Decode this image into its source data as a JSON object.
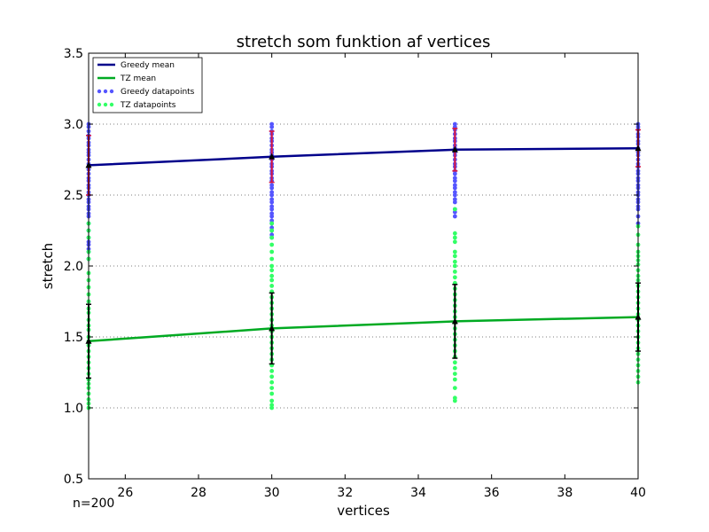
{
  "chart_data": {
    "type": "line",
    "title": "stretch som funktion af vertices",
    "xlabel": "vertices",
    "ylabel": "stretch",
    "annotation": "n=200",
    "xlim": [
      25,
      40
    ],
    "ylim": [
      0.5,
      3.5
    ],
    "xticks": [
      "26",
      "28",
      "30",
      "32",
      "34",
      "36",
      "38",
      "40"
    ],
    "yticks": [
      "0.5",
      "1.0",
      "1.5",
      "2.0",
      "2.5",
      "3.0",
      "3.5"
    ],
    "grid": "y-dotted",
    "legend_position": "top-left",
    "x": [
      25,
      30,
      35,
      40
    ],
    "series": [
      {
        "name": "Greedy mean",
        "kind": "line",
        "color": "#00008b",
        "values": [
          2.71,
          2.77,
          2.82,
          2.83
        ],
        "errors": [
          0.21,
          0.18,
          0.15,
          0.13
        ],
        "error_color": "#dc143c"
      },
      {
        "name": "TZ mean",
        "kind": "line",
        "color": "#00aa22",
        "values": [
          1.47,
          1.56,
          1.61,
          1.64
        ],
        "errors": [
          0.26,
          0.25,
          0.26,
          0.24
        ],
        "error_color": "#000000"
      },
      {
        "name": "Greedy datapoints",
        "kind": "scatter",
        "color": "#5555ff",
        "x": [
          25,
          30,
          35,
          40
        ],
        "values": [
          [
            3.0,
            2.98,
            2.95,
            2.92,
            2.9,
            2.87,
            2.85,
            2.82,
            2.8,
            2.78,
            2.75,
            2.72,
            2.7,
            2.68,
            2.65,
            2.62,
            2.6,
            2.57,
            2.55,
            2.52,
            2.5,
            2.47,
            2.45,
            2.42,
            2.4,
            2.37,
            2.35,
            2.3,
            2.25,
            2.2,
            2.17,
            2.15,
            2.12,
            2.1,
            2.05
          ],
          [
            3.0,
            2.98,
            2.95,
            2.93,
            2.9,
            2.88,
            2.85,
            2.82,
            2.8,
            2.78,
            2.75,
            2.72,
            2.7,
            2.67,
            2.65,
            2.62,
            2.6,
            2.57,
            2.55,
            2.52,
            2.5,
            2.47,
            2.45,
            2.42,
            2.4,
            2.37,
            2.35,
            2.32,
            2.3,
            2.27,
            2.25,
            2.22,
            2.2
          ],
          [
            3.0,
            2.98,
            2.96,
            2.93,
            2.9,
            2.88,
            2.85,
            2.83,
            2.8,
            2.78,
            2.75,
            2.72,
            2.7,
            2.67,
            2.65,
            2.62,
            2.6,
            2.57,
            2.55,
            2.52,
            2.5,
            2.47,
            2.45,
            2.4,
            2.38,
            2.35
          ],
          [
            3.0,
            2.98,
            2.96,
            2.93,
            2.91,
            2.88,
            2.86,
            2.83,
            2.8,
            2.78,
            2.75,
            2.72,
            2.7,
            2.67,
            2.65,
            2.62,
            2.6,
            2.57,
            2.55,
            2.52,
            2.5,
            2.47,
            2.45,
            2.42,
            2.4,
            2.35,
            2.3
          ]
        ]
      },
      {
        "name": "TZ datapoints",
        "kind": "scatter",
        "color": "#33ff66",
        "x": [
          25,
          30,
          35,
          40
        ],
        "values": [
          [
            2.3,
            2.25,
            2.2,
            2.1,
            2.05,
            1.95,
            1.9,
            1.85,
            1.8,
            1.75,
            1.7,
            1.67,
            1.62,
            1.58,
            1.55,
            1.5,
            1.47,
            1.44,
            1.4,
            1.36,
            1.32,
            1.28,
            1.24,
            1.2,
            1.17,
            1.14,
            1.1,
            1.06,
            1.03,
            1.0
          ],
          [
            2.3,
            2.25,
            2.2,
            2.15,
            2.1,
            2.05,
            2.0,
            1.97,
            1.93,
            1.9,
            1.86,
            1.82,
            1.78,
            1.74,
            1.7,
            1.66,
            1.62,
            1.58,
            1.54,
            1.5,
            1.46,
            1.42,
            1.38,
            1.34,
            1.3,
            1.26,
            1.22,
            1.18,
            1.14,
            1.1,
            1.05,
            1.02,
            1.0
          ],
          [
            2.4,
            2.23,
            2.2,
            2.17,
            2.1,
            2.07,
            2.03,
            2.0,
            1.96,
            1.92,
            1.88,
            1.84,
            1.8,
            1.76,
            1.72,
            1.68,
            1.64,
            1.6,
            1.56,
            1.52,
            1.48,
            1.44,
            1.4,
            1.36,
            1.32,
            1.28,
            1.24,
            1.2,
            1.14,
            1.07,
            1.05
          ],
          [
            2.28,
            2.22,
            2.15,
            2.1,
            2.07,
            2.04,
            2.01,
            1.97,
            1.93,
            1.9,
            1.86,
            1.82,
            1.78,
            1.74,
            1.7,
            1.66,
            1.62,
            1.58,
            1.54,
            1.5,
            1.46,
            1.42,
            1.38,
            1.34,
            1.3,
            1.26,
            1.22,
            1.18
          ]
        ]
      }
    ]
  }
}
